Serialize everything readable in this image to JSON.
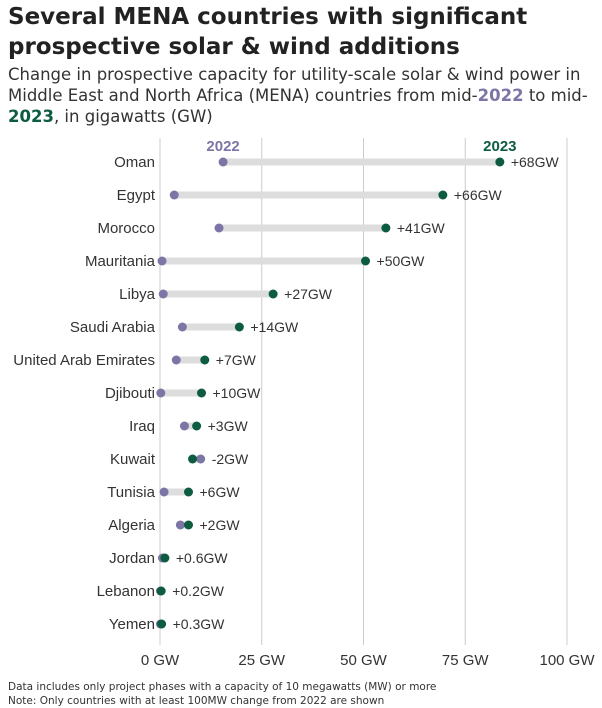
{
  "title": "Several MENA countries with significant prospective solar & wind additions",
  "subtitle": {
    "part1": "Change in prospective capacity for utility-scale solar & wind power in Middle East and North Africa (MENA) countries from mid-",
    "year_start": "2022",
    "part2": " to mid-",
    "year_end": "2023",
    "part3": ", in gigawatts (GW)"
  },
  "colors": {
    "start_dot": "#7b76a6",
    "end_dot": "#0d5c3f",
    "connector": "#dddddd",
    "grid": "#cccccc"
  },
  "chart_data": {
    "type": "dumbbell",
    "series": [
      {
        "name": "2022",
        "color": "#7b76a6"
      },
      {
        "name": "2023",
        "color": "#0d5c3f"
      }
    ],
    "x_range": [
      0,
      100
    ],
    "x_ticks": [
      {
        "value": 0,
        "label": "0 GW"
      },
      {
        "value": 25,
        "label": "25 GW"
      },
      {
        "value": 50,
        "label": "50 GW"
      },
      {
        "value": 75,
        "label": "75 GW"
      },
      {
        "value": 100,
        "label": "100 GW"
      }
    ],
    "rows": [
      {
        "country": "Oman",
        "v2022": 15.5,
        "v2023": 83.5,
        "change": "+68GW"
      },
      {
        "country": "Egypt",
        "v2022": 3.5,
        "v2023": 69.5,
        "change": "+66GW"
      },
      {
        "country": "Morocco",
        "v2022": 14.5,
        "v2023": 55.5,
        "change": "+41GW"
      },
      {
        "country": "Mauritania",
        "v2022": 0.5,
        "v2023": 50.5,
        "change": "+50GW"
      },
      {
        "country": "Libya",
        "v2022": 0.8,
        "v2023": 27.8,
        "change": "+27GW"
      },
      {
        "country": "Saudi Arabia",
        "v2022": 5.5,
        "v2023": 19.5,
        "change": "+14GW"
      },
      {
        "country": "United Arab Emirates",
        "v2022": 4.0,
        "v2023": 11.0,
        "change": "+7GW"
      },
      {
        "country": "Djibouti",
        "v2022": 0.2,
        "v2023": 10.2,
        "change": "+10GW"
      },
      {
        "country": "Iraq",
        "v2022": 6.0,
        "v2023": 9.0,
        "change": "+3GW"
      },
      {
        "country": "Kuwait",
        "v2022": 10.0,
        "v2023": 8.0,
        "change": "-2GW"
      },
      {
        "country": "Tunisia",
        "v2022": 1.0,
        "v2023": 7.0,
        "change": "+6GW"
      },
      {
        "country": "Algeria",
        "v2022": 5.0,
        "v2023": 7.0,
        "change": "+2GW"
      },
      {
        "country": "Jordan",
        "v2022": 0.6,
        "v2023": 1.2,
        "change": "+0.6GW"
      },
      {
        "country": "Lebanon",
        "v2022": 0.1,
        "v2023": 0.3,
        "change": "+0.2GW"
      },
      {
        "country": "Yemen",
        "v2022": 0.1,
        "v2023": 0.4,
        "change": "+0.3GW"
      }
    ]
  },
  "footnote": {
    "line1": "Data includes only project phases with a capacity of 10 megawatts (MW) or more",
    "line2": "Note: Only countries with at least 100MW change from 2022 are shown"
  }
}
